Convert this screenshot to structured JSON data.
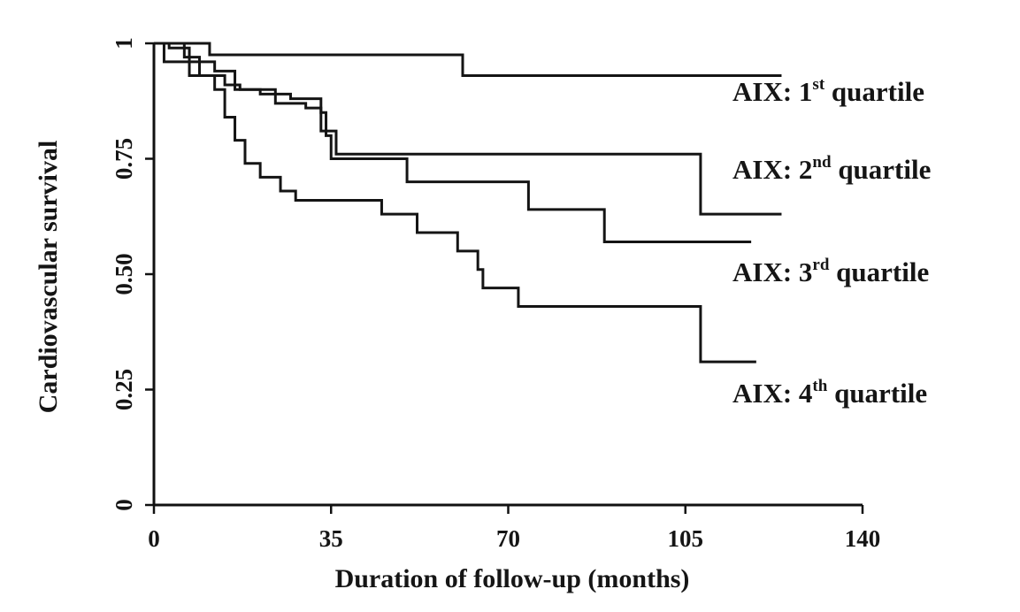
{
  "chart_data": {
    "type": "line",
    "subtype": "kaplan-meier step",
    "xlabel": "Duration of follow-up (months)",
    "ylabel": "Cardiovascular survival",
    "xlim": [
      0,
      140
    ],
    "ylim": [
      0,
      1
    ],
    "x_ticks": [
      "0",
      "35",
      "70",
      "105",
      "140"
    ],
    "y_ticks": [
      "0",
      "0.25",
      "0.50",
      "0.75",
      "1"
    ],
    "grid": false,
    "legend": "inline labels at right end of curves",
    "series": [
      {
        "name": "AIX: 1st quartile",
        "label_main": "AIX: 1",
        "label_sup": "st",
        "label_tail": " quartile",
        "x": [
          0,
          11,
          61,
          124
        ],
        "y": [
          1.0,
          0.975,
          0.93,
          0.93
        ]
      },
      {
        "name": "AIX: 2nd quartile",
        "label_main": "AIX: 2",
        "label_sup": "nd",
        "label_tail": " quartile",
        "x": [
          0,
          6,
          9,
          14,
          17,
          24,
          30,
          33,
          36,
          63,
          108,
          124
        ],
        "y": [
          1.0,
          0.97,
          0.93,
          0.91,
          0.9,
          0.87,
          0.86,
          0.81,
          0.76,
          0.76,
          0.63,
          0.63
        ]
      },
      {
        "name": "AIX: 3rd quartile",
        "label_main": "AIX: 3",
        "label_sup": "rd",
        "label_tail": " quartile",
        "x": [
          0,
          3,
          7,
          12,
          16,
          21,
          27,
          33,
          34,
          35,
          50,
          74,
          89,
          118
        ],
        "y": [
          1.0,
          0.99,
          0.96,
          0.94,
          0.9,
          0.89,
          0.88,
          0.85,
          0.8,
          0.75,
          0.7,
          0.64,
          0.57,
          0.57
        ]
      },
      {
        "name": "AIX: 4th quartile",
        "label_main": "AIX: 4",
        "label_sup": "th",
        "label_tail": " quartile",
        "x": [
          0,
          2,
          7,
          12,
          14,
          16,
          18,
          21,
          25,
          28,
          45,
          52,
          60,
          64,
          65,
          72,
          108,
          119
        ],
        "y": [
          1.0,
          0.96,
          0.93,
          0.9,
          0.84,
          0.79,
          0.74,
          0.71,
          0.68,
          0.66,
          0.63,
          0.59,
          0.55,
          0.51,
          0.47,
          0.43,
          0.31,
          0.31
        ]
      }
    ]
  }
}
